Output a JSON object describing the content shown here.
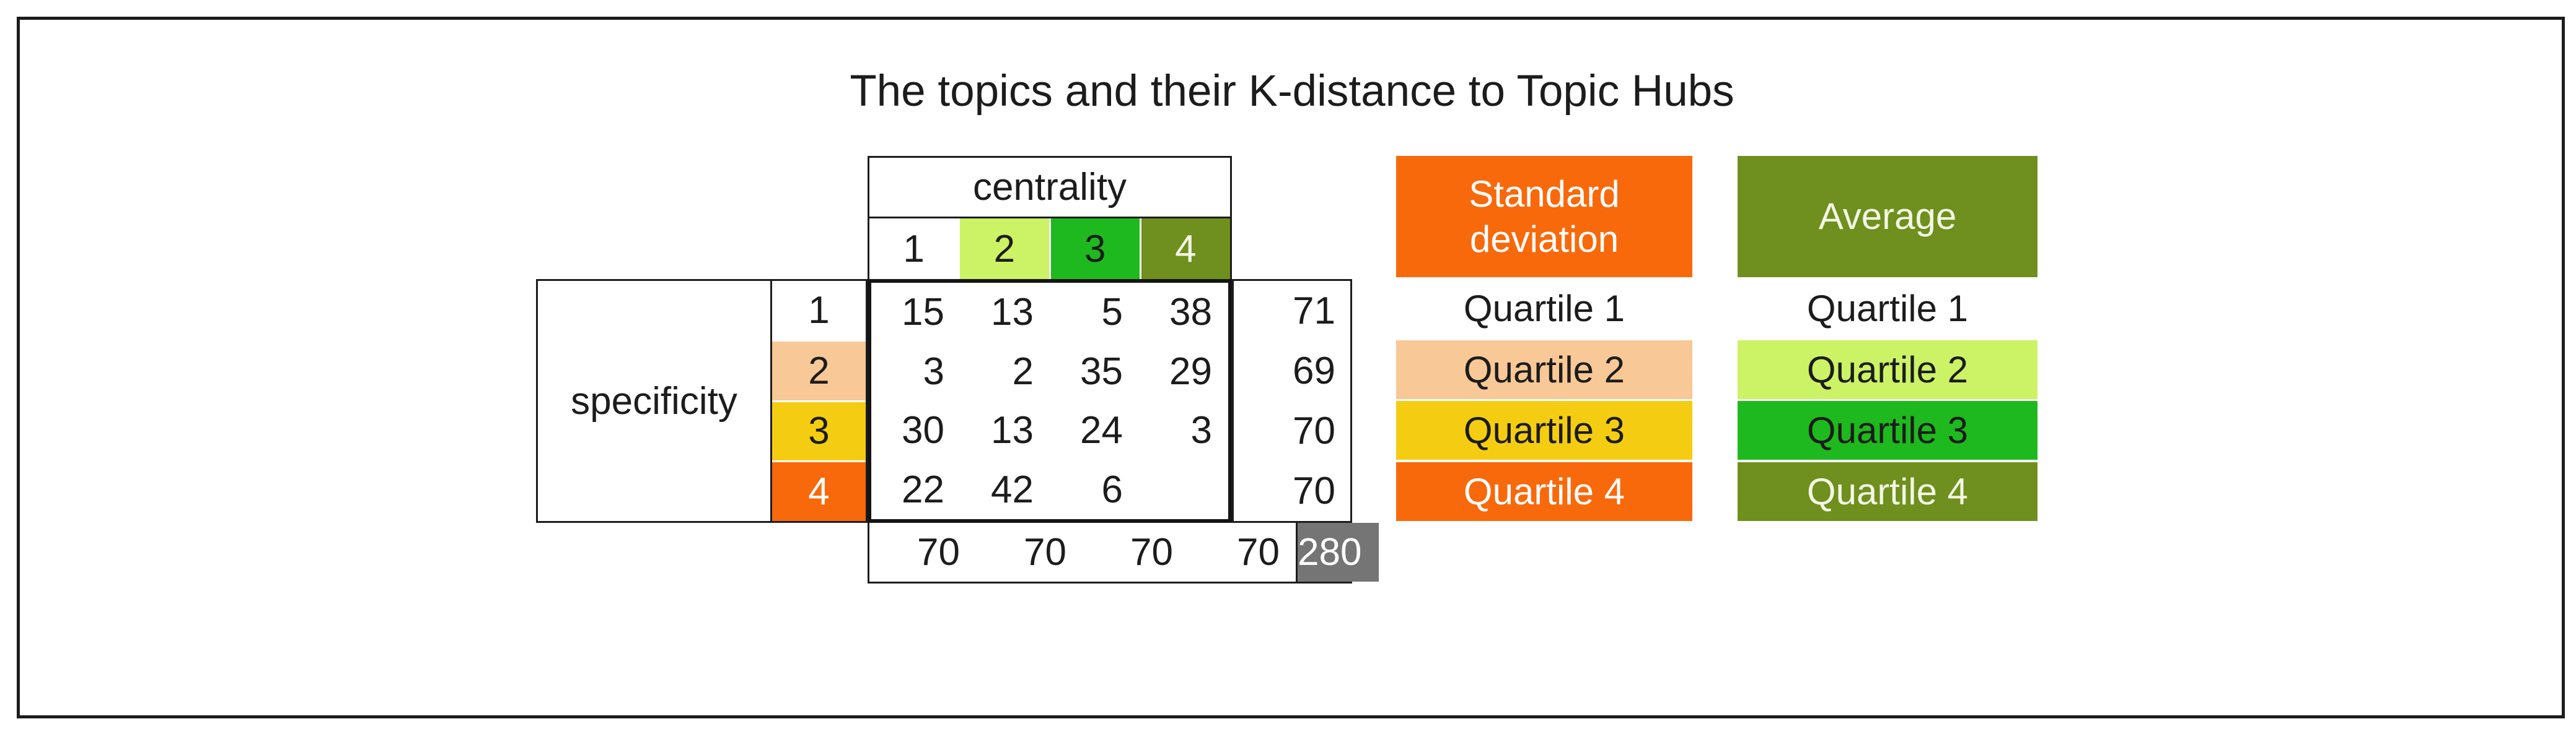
{
  "title": "The topics and their K-distance to Topic Hubs",
  "colors": {
    "orange": "#f8690b",
    "peach": "#f8c896",
    "gold": "#f4cd12",
    "light_green": "#ccf266",
    "green": "#1eb91e",
    "olive": "#6f8f1e",
    "gray": "#757575",
    "border_black": "#1c1c1c"
  },
  "chart_data": {
    "type": "table",
    "title": "The topics and their K-distance to Topic Hubs",
    "x_axis": {
      "label": "centrality",
      "categories": [
        "1",
        "2",
        "3",
        "4"
      ]
    },
    "y_axis": {
      "label": "specificity",
      "categories": [
        "1",
        "2",
        "3",
        "4"
      ]
    },
    "values": [
      [
        15,
        13,
        5,
        38
      ],
      [
        3,
        2,
        35,
        29
      ],
      [
        30,
        13,
        24,
        3
      ],
      [
        22,
        42,
        6,
        null
      ]
    ],
    "row_totals": [
      71,
      69,
      70,
      70
    ],
    "column_totals": [
      70,
      70,
      70,
      70
    ],
    "grand_total": 280,
    "legends": [
      {
        "title": "Standard deviation",
        "entries": [
          "Quartile 1",
          "Quartile 2",
          "Quartile 3",
          "Quartile 4"
        ],
        "entry_colors": [
          "#ffffff",
          "#f8c896",
          "#f4cd12",
          "#f8690b"
        ]
      },
      {
        "title": "Average",
        "entries": [
          "Quartile 1",
          "Quartile 2",
          "Quartile 3",
          "Quartile 4"
        ],
        "entry_colors": [
          "#ffffff",
          "#ccf266",
          "#1eb91e",
          "#6f8f1e"
        ]
      }
    ]
  }
}
